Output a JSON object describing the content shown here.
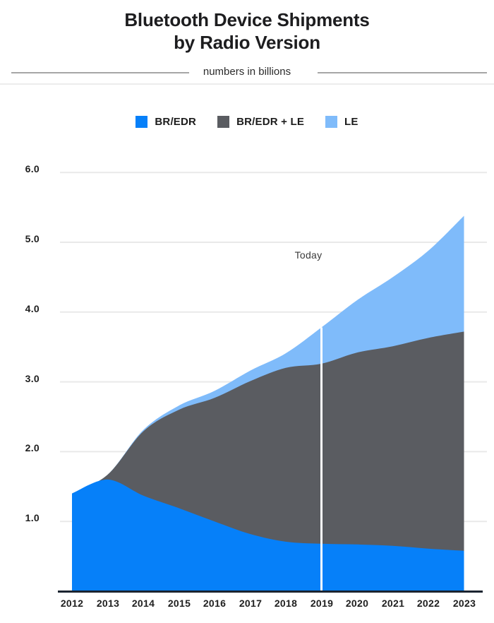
{
  "title": {
    "line1": "Bluetooth Device Shipments",
    "line2": "by Radio Version"
  },
  "subtitle": "numbers in billions",
  "legend": [
    {
      "label": "BR/EDR",
      "color": "#0680f9"
    },
    {
      "label": "BR/EDR + LE",
      "color": "#5a5c61"
    },
    {
      "label": "LE",
      "color": "#7fbbfa"
    }
  ],
  "colors": {
    "background": "#ffffff",
    "br_edr_blue": "#0680f9",
    "dual_gray": "#5a5c61",
    "le_light_blue": "#7fbbfa",
    "gridline": "#e9e9e9",
    "baseline": "#1b2430",
    "today_line": "#ffffff",
    "divider": "#a6a6a6",
    "divider_faint": "#ececec",
    "text": "#1d1d1f"
  },
  "chart_data": {
    "type": "area",
    "stacked": true,
    "title": "Bluetooth Device Shipments by Radio Version",
    "subtitle": "numbers in billions",
    "categories": [
      "2012",
      "2013",
      "2014",
      "2015",
      "2016",
      "2017",
      "2018",
      "2019",
      "2020",
      "2021",
      "2022",
      "2023"
    ],
    "series": [
      {
        "name": "BR/EDR",
        "color": "#0680f9",
        "values": [
          1.4,
          1.6,
          1.37,
          1.19,
          1.0,
          0.82,
          0.71,
          0.68,
          0.67,
          0.65,
          0.61,
          0.58
        ]
      },
      {
        "name": "BR/EDR + LE",
        "color": "#5a5c61",
        "values": [
          0.0,
          0.07,
          0.92,
          1.41,
          1.77,
          2.19,
          2.49,
          2.58,
          2.75,
          2.86,
          3.02,
          3.14
        ]
      },
      {
        "name": "LE",
        "color": "#7fbbfa",
        "values": [
          0.0,
          0.0,
          0.02,
          0.06,
          0.1,
          0.15,
          0.21,
          0.52,
          0.75,
          0.99,
          1.25,
          1.66
        ]
      }
    ],
    "totals": [
      1.4,
      1.67,
      2.31,
      2.66,
      2.87,
      3.16,
      3.41,
      3.78,
      4.17,
      4.5,
      4.88,
      5.38
    ],
    "xlabel": "",
    "ylabel": "",
    "ylim": [
      0,
      6.3
    ],
    "yticks": [
      1.0,
      2.0,
      3.0,
      4.0,
      5.0,
      6.0
    ],
    "ytick_labels": [
      "1.0",
      "2.0",
      "3.0",
      "4.0",
      "5.0",
      "6.0"
    ],
    "grid": true,
    "legend_position": "top-center",
    "annotations": [
      {
        "label": "Today",
        "x": "2019",
        "style": "vertical-white-line"
      }
    ]
  }
}
